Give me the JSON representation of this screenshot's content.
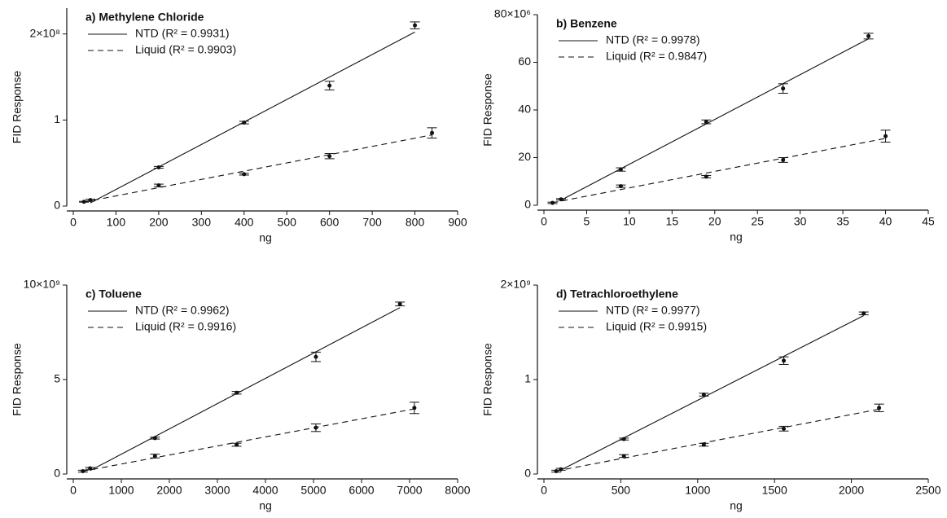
{
  "chart_data": [
    {
      "type": "scatter",
      "title": "a) Methylene Chloride",
      "x_label": "ng",
      "y_label": "FID Response",
      "xlim": [
        0,
        900
      ],
      "xticks": [
        0,
        100,
        200,
        300,
        400,
        500,
        600,
        700,
        800,
        900
      ],
      "ylim": [
        0,
        230000000
      ],
      "yticks": [
        0,
        {
          "value": 100000000,
          "label": "1"
        },
        {
          "value": 200000000,
          "label": "2×10⁸"
        }
      ],
      "legend": "upper left",
      "series": [
        {
          "name": "NTD (R² = 0.9931)",
          "color": "#111111",
          "dash": "solid",
          "x": [
            40,
            200,
            400,
            600,
            800
          ],
          "values": [
            7000000,
            45000000,
            97000000,
            140000000,
            210000000
          ],
          "errors": [
            1000000,
            1000000,
            1500000,
            5000000,
            4000000
          ]
        },
        {
          "name": "Liquid (R² = 0.9903)",
          "color": "#111111",
          "dash": "dashed",
          "x": [
            25,
            200,
            400,
            600,
            840
          ],
          "values": [
            5000000,
            24000000,
            37000000,
            58000000,
            85000000
          ],
          "errors": [
            500000,
            1500000,
            1000000,
            3000000,
            6000000
          ]
        }
      ]
    },
    {
      "type": "scatter",
      "title": "b) Benzene",
      "x_label": "ng",
      "y_label": "FID Response",
      "xlim": [
        0,
        45
      ],
      "xticks": [
        0,
        5,
        10,
        15,
        20,
        25,
        30,
        35,
        40,
        45
      ],
      "ylim": [
        0,
        80000000
      ],
      "yticks": [
        0,
        {
          "value": 20000000,
          "label": "20"
        },
        {
          "value": 40000000,
          "label": "40"
        },
        {
          "value": 60000000,
          "label": "60"
        },
        {
          "value": 80000000,
          "label": "80×10⁶"
        }
      ],
      "legend": "upper left",
      "series": [
        {
          "name": "NTD (R² = 0.9978)",
          "color": "#111111",
          "dash": "solid",
          "x": [
            2,
            9,
            19,
            28,
            38
          ],
          "values": [
            2500000,
            15000000,
            35000000,
            49000000,
            71000000
          ],
          "errors": [
            300000,
            700000,
            800000,
            2000000,
            1200000
          ]
        },
        {
          "name": "Liquid (R² = 0.9847)",
          "color": "#111111",
          "dash": "dashed",
          "x": [
            1,
            9,
            19,
            28,
            40
          ],
          "values": [
            1000000,
            8000000,
            12000000,
            19000000,
            29000000
          ],
          "errors": [
            300000,
            500000,
            500000,
            1000000,
            2500000
          ]
        }
      ]
    },
    {
      "type": "scatter",
      "title": "c) Toluene",
      "x_label": "ng",
      "y_label": "FID Response",
      "xlim": [
        0,
        8000
      ],
      "xticks": [
        0,
        1000,
        2000,
        3000,
        4000,
        5000,
        6000,
        7000,
        8000
      ],
      "ylim": [
        0,
        10000000000
      ],
      "yticks": [
        0,
        {
          "value": 5000000000,
          "label": "5"
        },
        {
          "value": 10000000000,
          "label": "10×10⁹"
        }
      ],
      "legend": "upper left",
      "series": [
        {
          "name": "NTD (R² = 0.9962)",
          "color": "#111111",
          "dash": "solid",
          "x": [
            350,
            1700,
            3400,
            5050,
            6800
          ],
          "values": [
            300000000,
            1900000000,
            4300000000,
            6200000000,
            9000000000
          ],
          "errors": [
            50000000,
            50000000,
            70000000,
            250000000,
            100000000
          ]
        },
        {
          "name": "Liquid (R² = 0.9916)",
          "color": "#111111",
          "dash": "dashed",
          "x": [
            200,
            1700,
            3400,
            5050,
            7100
          ],
          "values": [
            150000000,
            950000000,
            1550000000,
            2450000000,
            3500000000
          ],
          "errors": [
            50000000,
            100000000,
            80000000,
            200000000,
            300000000
          ]
        }
      ]
    },
    {
      "type": "scatter",
      "title": "d) Tetrachloroethylene",
      "x_label": "ng",
      "y_label": "FID Response",
      "xlim": [
        0,
        2500
      ],
      "xticks": [
        0,
        500,
        1000,
        1500,
        2000,
        2500
      ],
      "ylim": [
        0,
        2000000000
      ],
      "yticks": [
        0,
        {
          "value": 1000000000,
          "label": "1"
        },
        {
          "value": 2000000000,
          "label": "2×10⁹"
        }
      ],
      "legend": "upper left",
      "series": [
        {
          "name": "NTD (R² = 0.9977)",
          "color": "#111111",
          "dash": "solid",
          "x": [
            110,
            520,
            1040,
            1560,
            2080
          ],
          "values": [
            50000000,
            370000000,
            840000000,
            1200000000,
            1700000000
          ],
          "errors": [
            10000000,
            10000000,
            15000000,
            40000000,
            15000000
          ]
        },
        {
          "name": "Liquid (R² = 0.9915)",
          "color": "#111111",
          "dash": "dashed",
          "x": [
            80,
            520,
            1040,
            1560,
            2180
          ],
          "values": [
            30000000,
            190000000,
            310000000,
            480000000,
            700000000
          ],
          "errors": [
            10000000,
            15000000,
            15000000,
            25000000,
            40000000
          ]
        }
      ]
    }
  ]
}
